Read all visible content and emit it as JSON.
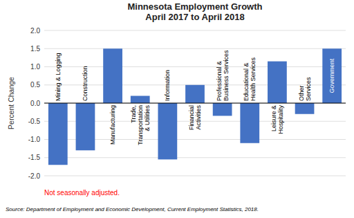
{
  "chart_data": {
    "type": "bar",
    "title": "Minnesota Employment Growth\nApril 2017 to April 2018",
    "categories": [
      "Mining & Logging",
      "Construction",
      "Manufacturing",
      "Trade,\nTransportation\n& Utilities",
      "Information",
      "Financial\nActivities",
      "Professional &\nBusiness Services",
      "Educational &\nHealth Services",
      "Leisure &\nHospitality",
      "Other\nServices",
      "Government"
    ],
    "values": [
      -1.7,
      -1.3,
      1.5,
      0.2,
      -1.55,
      0.5,
      -0.35,
      -1.1,
      1.15,
      -0.3,
      1.5
    ],
    "color": "#4472C4",
    "ylim": [
      -2.0,
      2.0
    ],
    "yticks": [
      {
        "value": -2.0,
        "label": "-2.0"
      },
      {
        "value": -1.5,
        "label": "-1.5"
      },
      {
        "value": -1.0,
        "label": "-1.0"
      },
      {
        "value": -0.5,
        "label": "-0.5"
      },
      {
        "value": 0.0,
        "label": "0.0"
      },
      {
        "value": 0.5,
        "label": "0.5"
      },
      {
        "value": 1.0,
        "label": "1.0"
      },
      {
        "value": 1.5,
        "label": "1.5"
      },
      {
        "value": 2.0,
        "label": "2.0"
      }
    ],
    "ylabel": "Percent Change",
    "grid": true,
    "annotations": [
      {
        "text": "Not seasonally adjusted.",
        "color": "#FF0000"
      },
      {
        "text": "Source: Department of Employment and Economic Development, Current Employment Statistics, 2018."
      }
    ]
  }
}
